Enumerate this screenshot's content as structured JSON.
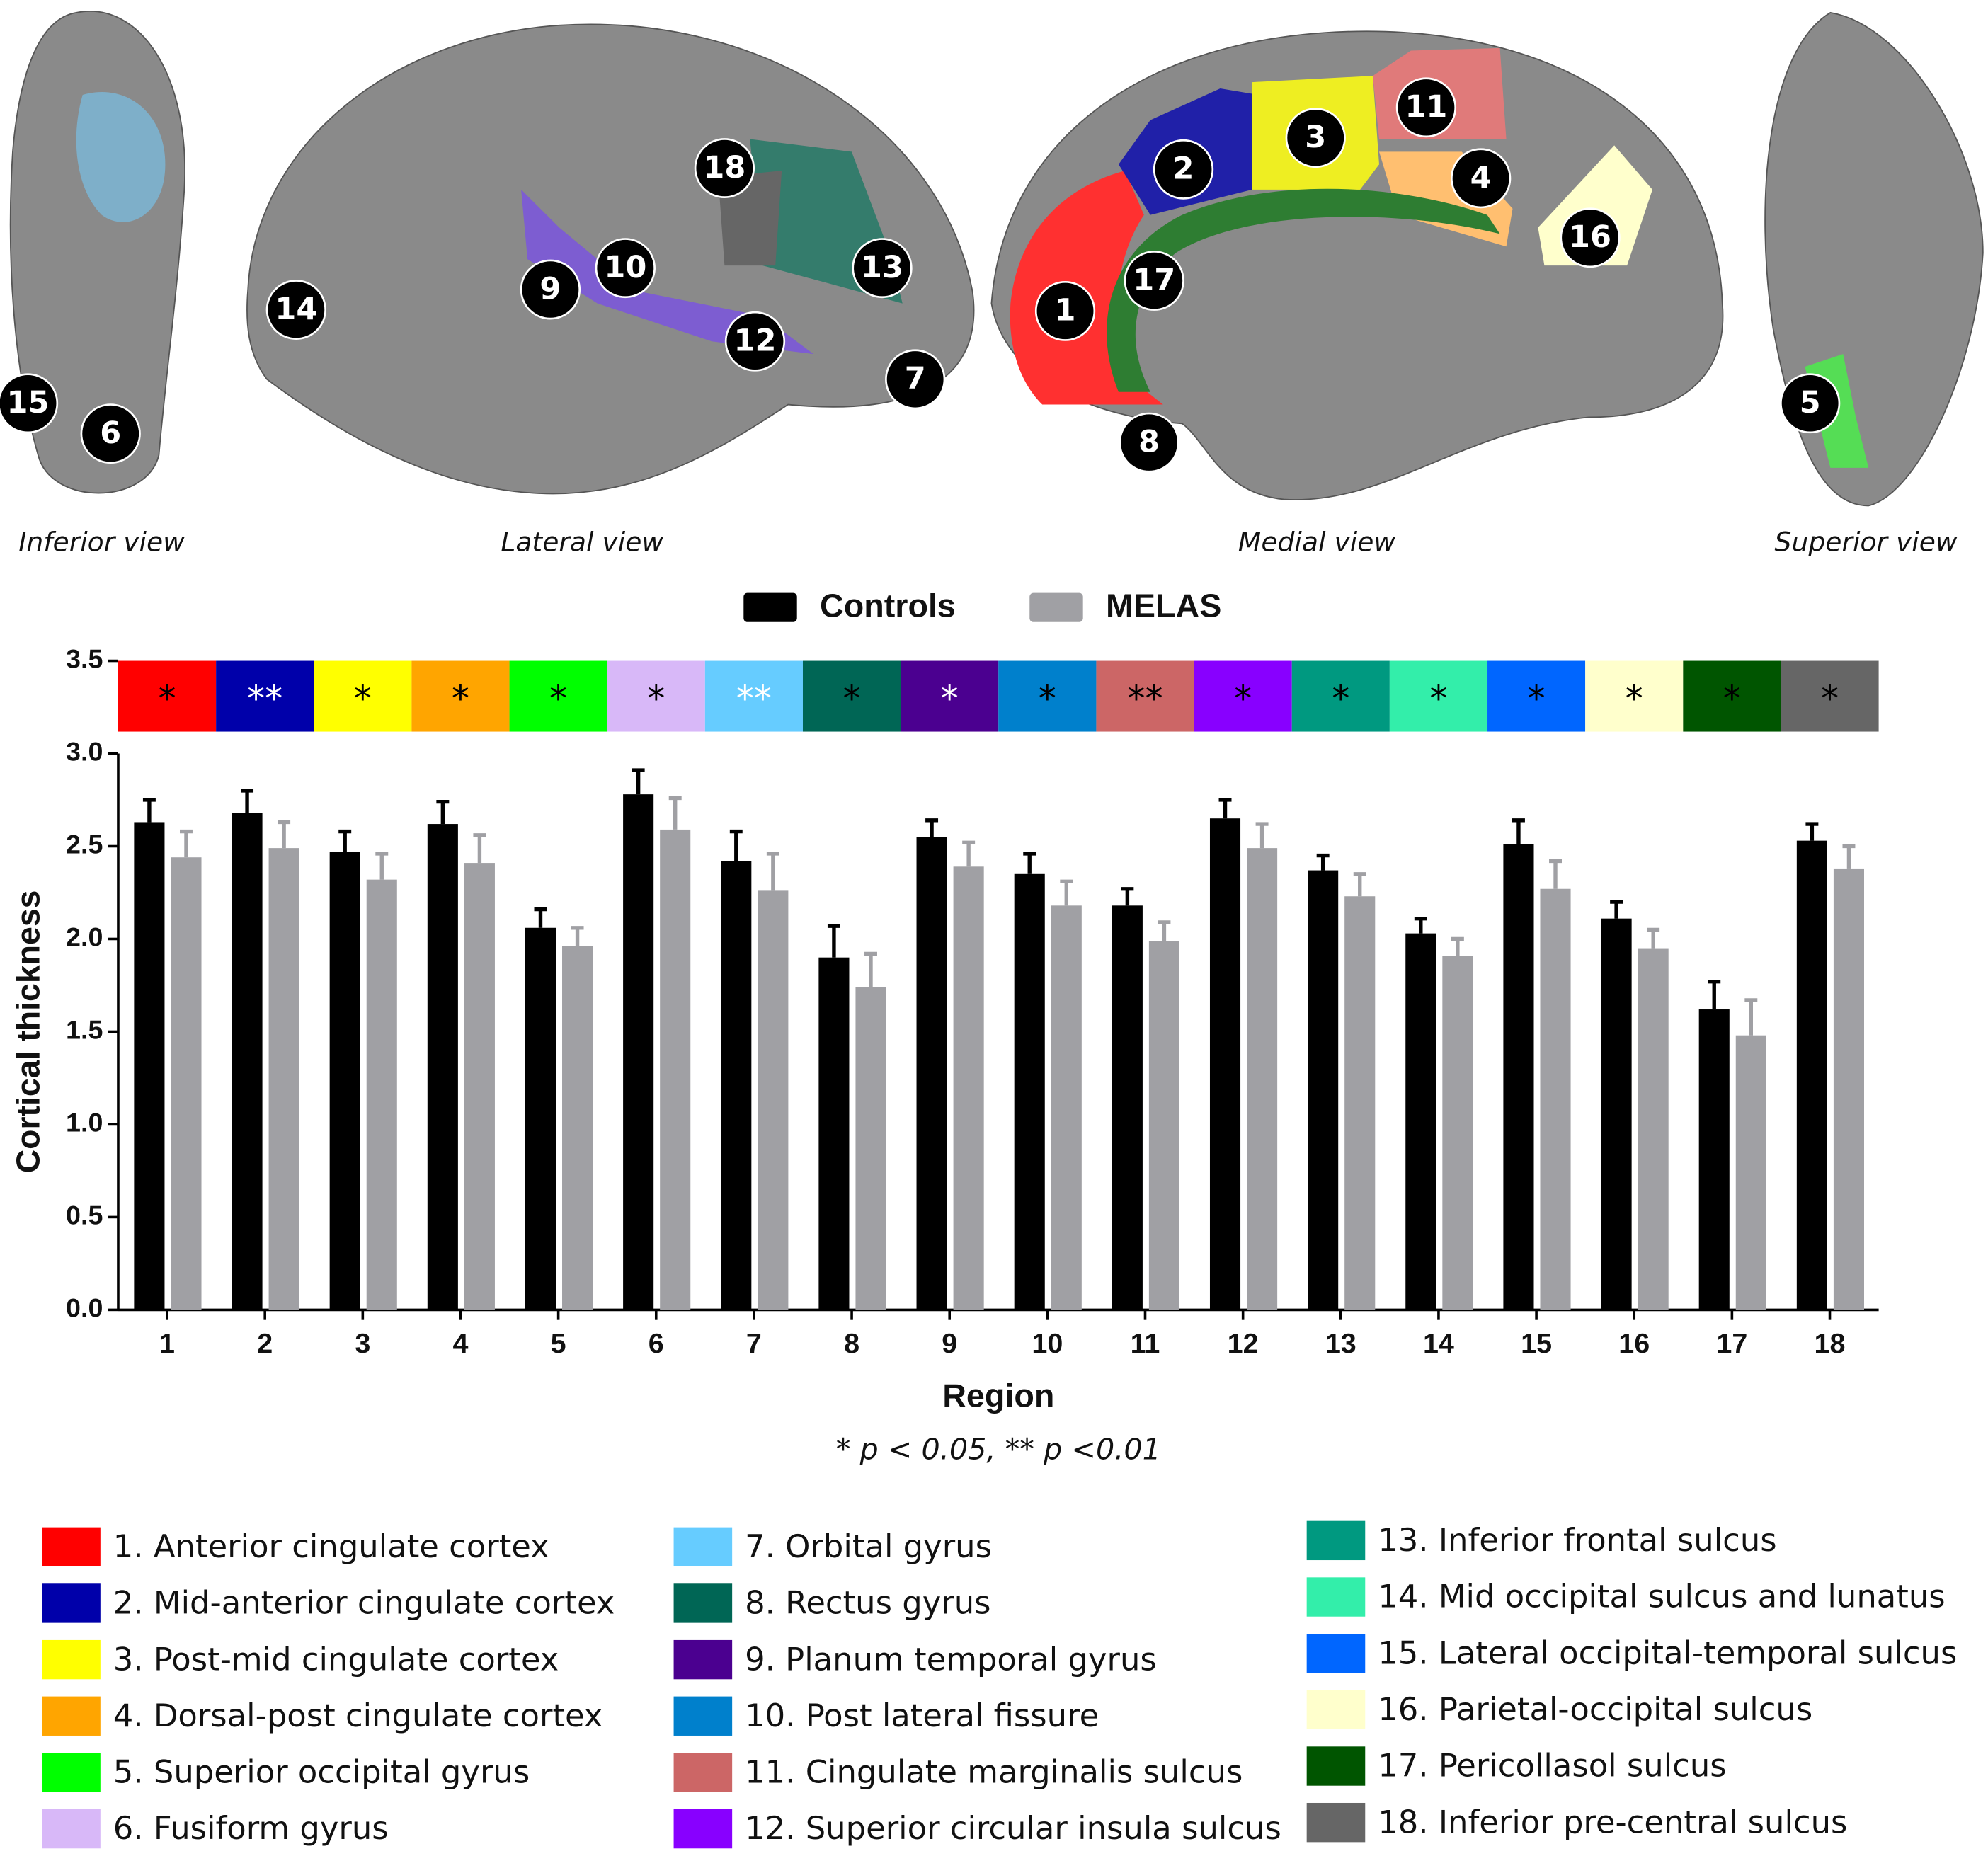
{
  "chart_data": {
    "type": "bar",
    "legend_position": "top",
    "x_label": "Region",
    "y_label": "Cortical thickness",
    "note": "* p < 0.05, ** p <0.01",
    "categories": [
      "1",
      "2",
      "3",
      "4",
      "5",
      "6",
      "7",
      "8",
      "9",
      "10",
      "11",
      "12",
      "13",
      "14",
      "15",
      "16",
      "17",
      "18"
    ],
    "series": [
      {
        "name": "Controls",
        "color": "#000000",
        "values": [
          2.63,
          2.68,
          2.47,
          2.62,
          2.06,
          2.78,
          2.42,
          1.9,
          2.55,
          2.35,
          2.18,
          2.65,
          2.37,
          2.03,
          2.51,
          2.11,
          1.62,
          2.53
        ],
        "errors": [
          0.12,
          0.12,
          0.11,
          0.12,
          0.1,
          0.13,
          0.16,
          0.17,
          0.09,
          0.11,
          0.09,
          0.1,
          0.08,
          0.08,
          0.13,
          0.09,
          0.15,
          0.09
        ]
      },
      {
        "name": "MELAS",
        "color": "#a0a0a4",
        "values": [
          2.44,
          2.49,
          2.32,
          2.41,
          1.96,
          2.59,
          2.26,
          1.74,
          2.39,
          2.18,
          1.99,
          2.49,
          2.23,
          1.91,
          2.27,
          1.95,
          1.48,
          2.38
        ],
        "errors": [
          0.14,
          0.14,
          0.14,
          0.15,
          0.1,
          0.17,
          0.2,
          0.18,
          0.13,
          0.13,
          0.1,
          0.13,
          0.12,
          0.09,
          0.15,
          0.1,
          0.19,
          0.12
        ]
      }
    ],
    "significance": [
      "*",
      "**",
      "*",
      "*",
      "*",
      "*",
      "**",
      "*",
      "*",
      "*",
      "**",
      "*",
      "*",
      "*",
      "*",
      "*",
      "*",
      "*"
    ],
    "significance_colors": [
      "#000",
      "#fff",
      "#000",
      "#000",
      "#000",
      "#000",
      "#fff",
      "#000",
      "#fff",
      "#000",
      "#000",
      "#000",
      "#000",
      "#000",
      "#000",
      "#000",
      "#000",
      "#000"
    ],
    "ylim": [
      0,
      3.5
    ],
    "yticks": [
      {
        "value": 0,
        "label": "0.0"
      },
      0.5,
      {
        "value": 1,
        "label": "1.0"
      },
      1.5,
      {
        "value": 2,
        "label": "2.0"
      },
      2.5,
      {
        "value": 3,
        "label": "3.0"
      },
      3.5
    ]
  },
  "brain_views": [
    {
      "label": "Inferior view",
      "markers": [
        "15",
        "6"
      ]
    },
    {
      "label": "Lateral view",
      "markers": [
        "18",
        "9",
        "10",
        "13",
        "14",
        "12",
        "7"
      ]
    },
    {
      "label": "Medial view",
      "markers": [
        "11",
        "3",
        "2",
        "4",
        "16",
        "17",
        "1",
        "8"
      ]
    },
    {
      "label": "Superior view",
      "markers": [
        "5"
      ]
    }
  ],
  "regions": [
    {
      "label": "1. Anterior cingulate cortex",
      "color": "#ff0000"
    },
    {
      "label": "2. Mid-anterior cingulate cortex",
      "color": "#0000aa"
    },
    {
      "label": "3. Post-mid cingulate cortex",
      "color": "#ffff00"
    },
    {
      "label": "4. Dorsal-post cingulate cortex",
      "color": "#ffa500"
    },
    {
      "label": "5. Superior occipital gyrus",
      "color": "#00ff00"
    },
    {
      "label": "6. Fusiform gyrus",
      "color": "#d8b8f8"
    },
    {
      "label": "7. Orbital gyrus",
      "color": "#66ccff"
    },
    {
      "label": "8. Rectus gyrus",
      "color": "#006655"
    },
    {
      "label": "9. Planum temporal gyrus",
      "color": "#4b0090"
    },
    {
      "label": "10. Post lateral fissure",
      "color": "#0080cc"
    },
    {
      "label": "11. Cingulate marginalis sulcus",
      "color": "#cc6666"
    },
    {
      "label": "12. Superior circular insula sulcus",
      "color": "#8800ff"
    },
    {
      "label": "13. Inferior frontal sulcus",
      "color": "#009980"
    },
    {
      "label": "14. Mid occipital sulcus and lunatus",
      "color": "#33eeaa"
    },
    {
      "label": "15. Lateral occipital-temporal sulcus",
      "color": "#0066ff"
    },
    {
      "label": "16. Parietal-occipital sulcus",
      "color": "#ffffcc"
    },
    {
      "label": "17. Pericollasol sulcus",
      "color": "#005500"
    },
    {
      "label": "18. Inferior pre-central sulcus",
      "color": "#666666"
    }
  ]
}
